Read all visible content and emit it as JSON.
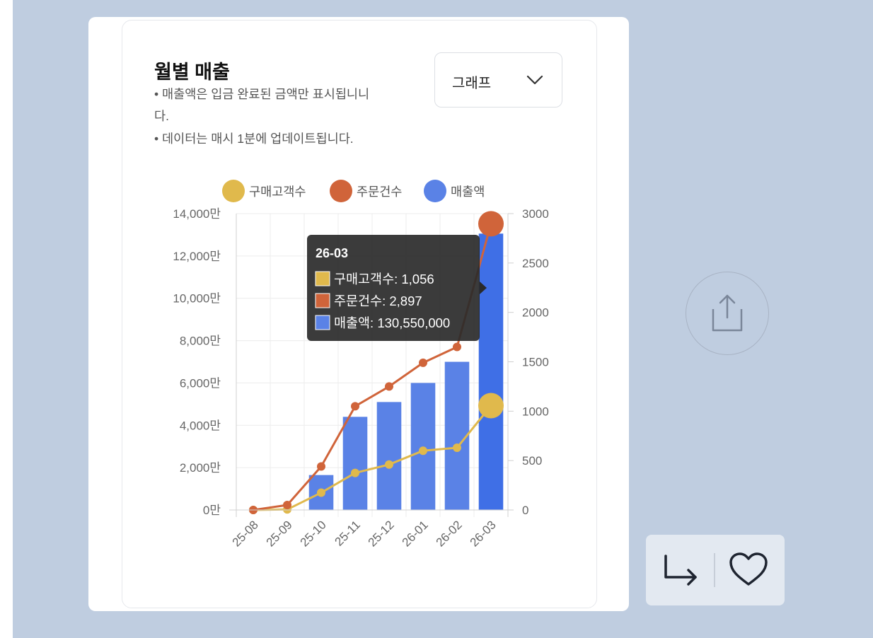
{
  "chart_card": {
    "title": "월별 매출",
    "notes": [
      "• 매출액은 입금 완료된 금액만 표시됩니니",
      "다.",
      "• 데이터는 매시 1분에 업데이트됩니다."
    ],
    "view_select": {
      "value": "그래프",
      "icon": "chevron-down-icon"
    }
  },
  "chart_data": {
    "type": "bar",
    "categories": [
      "25-08",
      "25-09",
      "25-10",
      "25-11",
      "25-12",
      "26-01",
      "26-02",
      "26-03"
    ],
    "series": [
      {
        "name": "구매고객수",
        "type": "line",
        "axis": "right",
        "color": "#e0b94c",
        "values": [
          0,
          5,
          175,
          375,
          460,
          600,
          630,
          1056
        ]
      },
      {
        "name": "주문건수",
        "type": "line",
        "axis": "right",
        "color": "#d0643a",
        "values": [
          0,
          50,
          440,
          1050,
          1250,
          1490,
          1650,
          2897
        ]
      },
      {
        "name": "매출액",
        "type": "bar",
        "axis": "left",
        "color": "#5a82e6",
        "values": [
          0,
          0,
          16500000,
          44000000,
          51000000,
          60000000,
          70000000,
          130550000
        ]
      }
    ],
    "y_left": {
      "min": 0,
      "max": 140000000,
      "ticks": [
        "0만",
        "2,000만",
        "4,000만",
        "6,000만",
        "8,000만",
        "10,000만",
        "12,000만",
        "14,000만"
      ]
    },
    "y_right": {
      "min": 0,
      "max": 3000,
      "ticks": [
        "0",
        "500",
        "1000",
        "1500",
        "2000",
        "2500",
        "3000"
      ]
    },
    "legend": {
      "position": "top"
    },
    "grid": true,
    "tooltip": {
      "title": "26-03",
      "lines": [
        "구매고객수: 1,056",
        "주문건수: 2,897",
        "매출액: 130,550,000"
      ]
    }
  },
  "side": {
    "share_icon": "share-icon",
    "reply_icon": "reply-arrow-icon",
    "like_icon": "heart-icon"
  }
}
